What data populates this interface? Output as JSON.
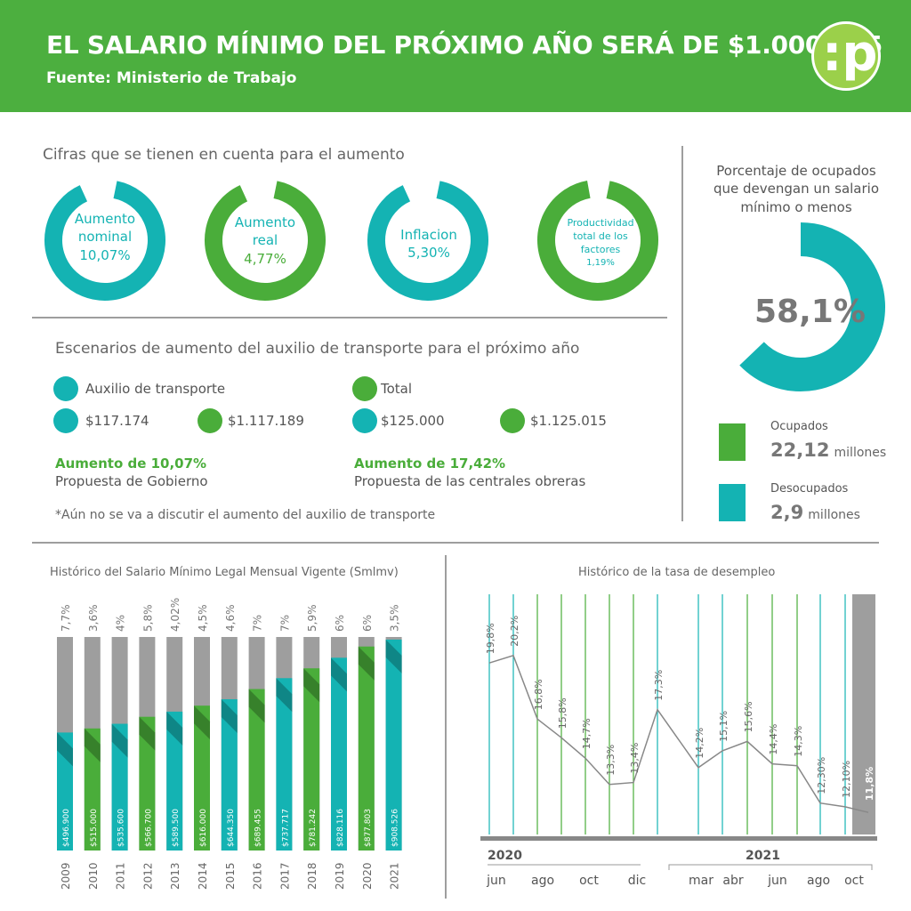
{
  "header": {
    "title": "EL SALARIO MÍNIMO DEL PRÓXIMO AÑO SERÁ DE $1.000.015",
    "source": "Fuente: Ministerio de Trabajo",
    "logo": ":p"
  },
  "colors": {
    "green": "#4aad3a",
    "teal": "#14b3b3",
    "gray": "#9e9e9e",
    "header": "#4caf3f"
  },
  "factors": {
    "title": "Cifras que se tienen en cuenta para el aumento",
    "rings": [
      {
        "l1": "Aumento",
        "l2": "nominal",
        "l3": "10,07%",
        "color": "teal",
        "fill": 0.9
      },
      {
        "l1": "Aumento",
        "l2": "real",
        "l3": "4,77%",
        "color": "green",
        "fill": 0.9
      },
      {
        "l1": "Inflacion",
        "l2": "5,30%",
        "l3": "",
        "color": "teal",
        "fill": 0.9
      },
      {
        "l1": "Productividad",
        "l2": "total de los",
        "l3": "factores",
        "l4": "1,19%",
        "color": "green",
        "fill": 0.94
      }
    ]
  },
  "transport": {
    "title": "Escenarios de aumento del auxilio de transporte para el próximo año",
    "legend_aux": "Auxilio de transporte",
    "legend_total": "Total",
    "gov_aux": "$117.174",
    "gov_total": "$1.117.189",
    "union_aux": "$125.000",
    "union_total": "$1.125.015",
    "gov_increase": "Aumento de 10,07%",
    "gov_label": "Propuesta de Gobierno",
    "union_increase": "Aumento de 17,42%",
    "union_label": "Propuesta de las centrales obreras",
    "note": "*Aún no se va a discutir el aumento del auxilio de transporte"
  },
  "employment": {
    "title_l1": "Porcentaje de ocupados",
    "title_l2": "que devengan un salario",
    "title_l3": "mínimo o menos",
    "percent": "58,1%",
    "percent_value": 58.1,
    "occupied_label": "Ocupados",
    "occupied_value": "22,12",
    "occupied_unit": "millones",
    "unemployed_label": "Desocupados",
    "unemployed_value": "2,9",
    "unemployed_unit": "millones"
  },
  "chart_data": [
    {
      "type": "bar",
      "title": "Histórico del Salario Mínimo Legal Mensual Vigente (Smlmv)",
      "categories": [
        "2009",
        "2010",
        "2011",
        "2012",
        "2013",
        "2014",
        "2015",
        "2016",
        "2017",
        "2018",
        "2019",
        "2020",
        "2021"
      ],
      "values": [
        496900,
        515000,
        535600,
        566700,
        589500,
        616000,
        644350,
        689455,
        737717,
        781242,
        828116,
        877803,
        908526
      ],
      "value_labels": [
        "$496.900",
        "$515.000",
        "$535.600",
        "$566.700",
        "$589.500",
        "$616.000",
        "$644.350",
        "$689.455",
        "$737.717",
        "$781.242",
        "$828.116",
        "$877.803",
        "$908.526"
      ],
      "increase_labels": [
        "7,7%",
        "3,6%",
        "4%",
        "5,8%",
        "4,02%",
        "4,5%",
        "4,6%",
        "7%",
        "7%",
        "5,9%",
        "6%",
        "6%",
        "3,5%"
      ],
      "bar_colors": [
        "teal",
        "green",
        "teal",
        "green",
        "teal",
        "green",
        "teal",
        "green",
        "teal",
        "green",
        "teal",
        "green",
        "teal"
      ]
    },
    {
      "type": "line",
      "title": "Histórico de la tasa de desempleo",
      "values": [
        19.8,
        20.2,
        16.8,
        15.8,
        14.7,
        13.3,
        13.4,
        17.3,
        14.2,
        15.1,
        15.6,
        14.4,
        14.3,
        12.3,
        12.1,
        11.8
      ],
      "labels": [
        "19,8%",
        "20,2%",
        "16,8%",
        "15,8%",
        "14,7%",
        "13,3%",
        "13,4%",
        "17,3%",
        "14,2%",
        "15,1%",
        "15,6%",
        "14,4%",
        "14,3%",
        "12,30%",
        "12,10%",
        "11,8%"
      ],
      "year_labels": [
        "2020",
        "2021"
      ],
      "x_labels": [
        "jun",
        "ago",
        "oct",
        "dic",
        "mar",
        "abr",
        "jun",
        "ago",
        "oct"
      ]
    }
  ]
}
